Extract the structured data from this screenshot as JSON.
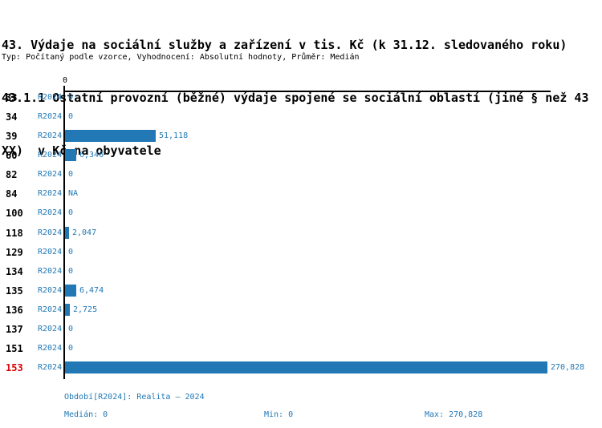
{
  "title": {
    "line1": "43. Výdaje na sociální služby a zařízení v tis. Kč (k 31.12. sledovaného roku)",
    "line2": "43.1.1 Ostatní provozní (běžné) výdaje spojené se sociální oblastí (jiné § než 43",
    "line3": "XX)  v Kč na obyvatele"
  },
  "subtitle": "Typ: Počítaný podle vzorce, Vyhodnocení: Absolutní hodnoty, Průměr: Medián",
  "axis": {
    "tick_label": "0"
  },
  "chart_data": {
    "type": "bar",
    "orientation": "horizontal",
    "title": "43.1.1 Ostatní provozní (běžné) výdaje spojené se sociální oblastí (jiné § než 43 XX) v Kč na obyvatele",
    "categories": [
      "33",
      "34",
      "39",
      "60",
      "82",
      "84",
      "100",
      "118",
      "129",
      "134",
      "135",
      "136",
      "137",
      "151",
      "153"
    ],
    "series_label": "R2024",
    "values": [
      0,
      0,
      51118,
      6346,
      0,
      null,
      0,
      2047,
      0,
      0,
      6474,
      2725,
      0,
      0,
      270828
    ],
    "value_labels": [
      "0",
      "0",
      "51,118",
      "6,346",
      "0",
      "NA",
      "0",
      "2,047",
      "0",
      "0",
      "6,474",
      "2,725",
      "0",
      "0",
      "270,828"
    ],
    "xlim": [
      0,
      270828
    ],
    "grid": false,
    "legend": false,
    "highlight_category": "153"
  },
  "footer": {
    "period": "Období[R2024]: Realita – 2024",
    "median": "Medián: 0",
    "min": "Min: 0",
    "max": "Max: 270,828"
  },
  "colors": {
    "bar": "#2178B5",
    "text_blue": "#2178B5",
    "highlight_red": "#DD0000",
    "axis_black": "#000000"
  }
}
